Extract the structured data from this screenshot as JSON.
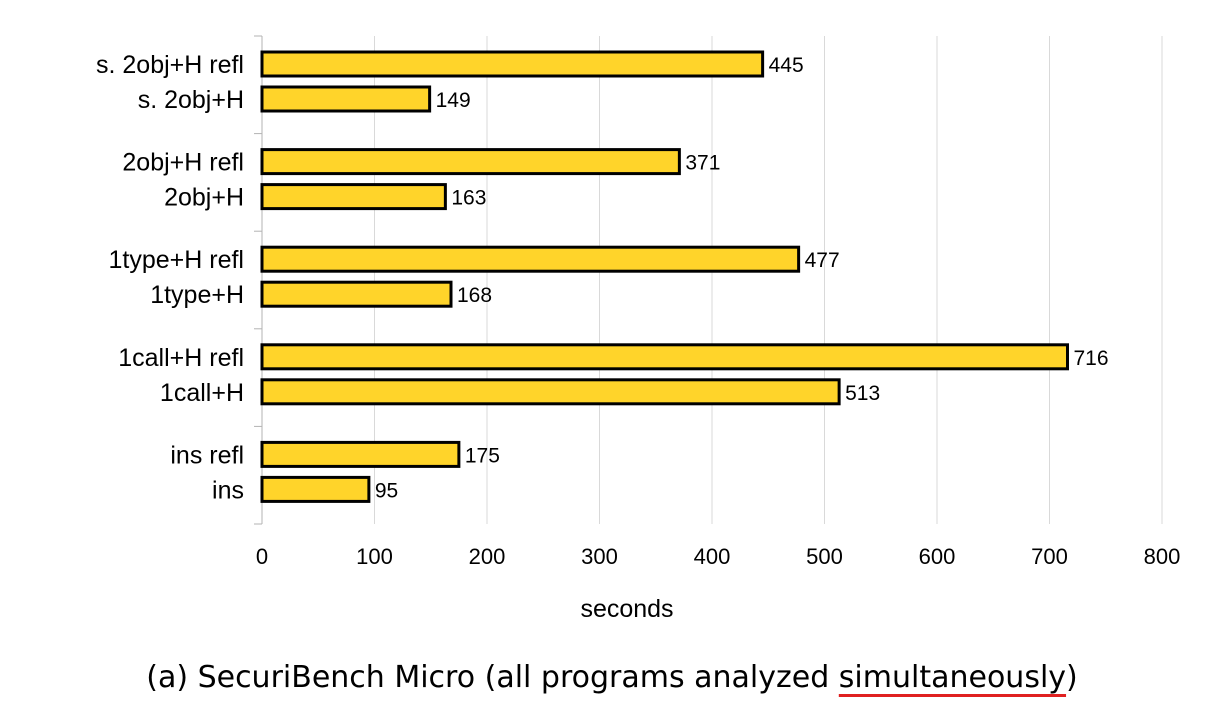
{
  "chart_data": {
    "type": "bar",
    "orientation": "horizontal",
    "categories": [
      "s. 2obj+H refl",
      "s. 2obj+H",
      "2obj+H refl",
      "2obj+H",
      "1type+H refl",
      "1type+H",
      "1call+H refl",
      "1call+H",
      "ins refl",
      "ins"
    ],
    "groups": [
      [
        "s. 2obj+H refl",
        "s. 2obj+H"
      ],
      [
        "2obj+H refl",
        "2obj+H"
      ],
      [
        "1type+H refl",
        "1type+H"
      ],
      [
        "1call+H refl",
        "1call+H"
      ],
      [
        "ins refl",
        "ins"
      ]
    ],
    "values": [
      445,
      149,
      371,
      163,
      477,
      168,
      716,
      513,
      175,
      95
    ],
    "xlabel": "seconds",
    "xlim": [
      0,
      800
    ],
    "xticks": [
      0,
      100,
      200,
      300,
      400,
      500,
      600,
      700,
      800
    ],
    "grid": "vertical",
    "bar_color": "#ffd42a",
    "bar_edge_color": "#000000"
  },
  "caption": {
    "prefix": "(a) SecuriBench Micro (all programs analyzed ",
    "underlined": "simultaneously",
    "suffix": ")"
  }
}
